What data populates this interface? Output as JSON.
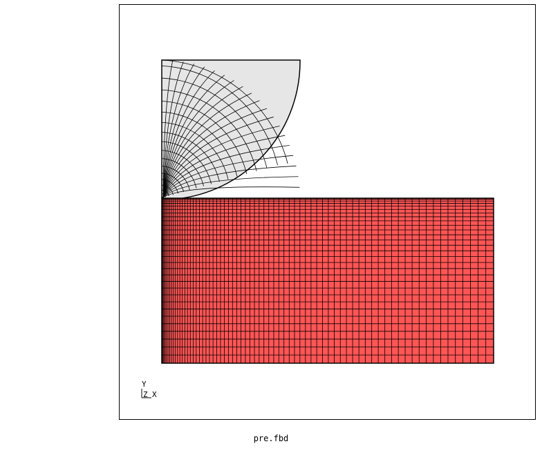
{
  "viewport": {
    "background": "#ffffff",
    "frame_color": "#000000",
    "mesh_line_color": "#000000",
    "sphere_fill": "#e6e6e6",
    "plate_fill": "#ff5555"
  },
  "axis_triad": {
    "y_label": "Y",
    "z_label": "Z",
    "x_label": "X"
  },
  "status": {
    "filename": "pre.fbd"
  }
}
